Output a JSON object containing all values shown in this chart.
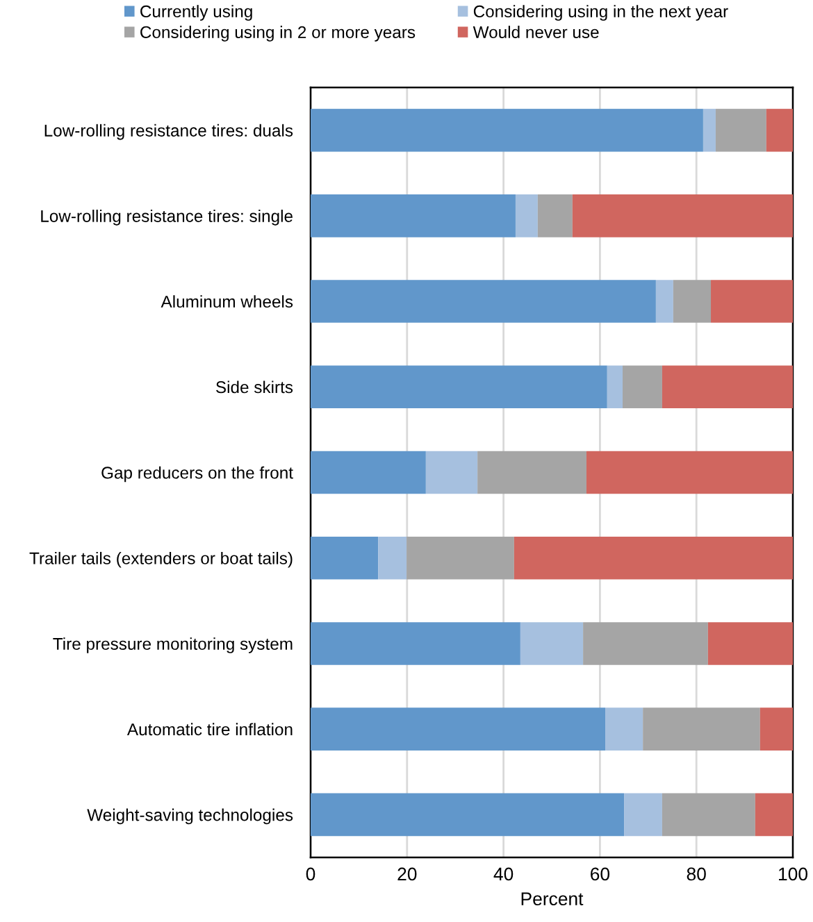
{
  "chart_data": {
    "type": "bar",
    "orientation": "horizontal",
    "stacked": true,
    "categories": [
      "Low-rolling resistance tires: duals",
      "Low-rolling resistance tires: single",
      "Aluminum wheels",
      "Side skirts",
      "Gap reducers on the front",
      "Trailer tails (extenders or boat tails)",
      "Tire pressure monitoring system",
      "Automatic tire inflation",
      "Weight-saving technologies"
    ],
    "series": [
      {
        "name": "Currently using",
        "color": "#6197cb",
        "values": [
          81.4,
          42.5,
          71.6,
          61.5,
          23.9,
          14.0,
          43.5,
          61.1,
          65.0
        ]
      },
      {
        "name": "Considering using in the next year",
        "color": "#a6c0df",
        "values": [
          2.6,
          4.6,
          3.6,
          3.2,
          10.7,
          5.9,
          13.0,
          7.8,
          7.9
        ]
      },
      {
        "name": "Considering using in 2 or more years",
        "color": "#a5a5a5",
        "values": [
          10.5,
          7.2,
          7.8,
          8.2,
          22.6,
          22.3,
          25.9,
          24.3,
          19.3
        ]
      },
      {
        "name": "Would never use",
        "color": "#d0665f",
        "values": [
          5.5,
          45.7,
          17.0,
          27.1,
          42.8,
          57.8,
          17.6,
          6.8,
          7.8
        ]
      }
    ],
    "xlabel": "Percent",
    "xlim": [
      0,
      100
    ],
    "xticks": [
      0,
      20,
      40,
      60,
      80,
      100
    ],
    "grid": "x",
    "legend": "top"
  }
}
